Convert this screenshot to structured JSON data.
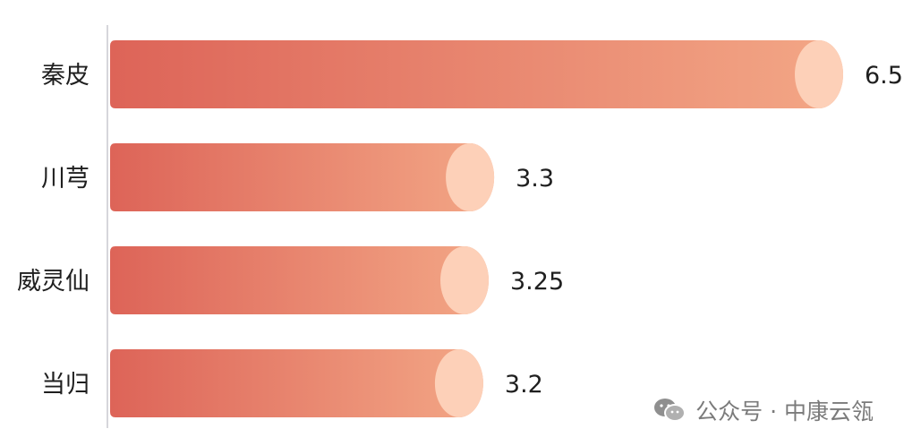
{
  "chart_data": {
    "type": "bar",
    "orientation": "horizontal",
    "categories": [
      "秦皮",
      "川芎",
      "威灵仙",
      "当归"
    ],
    "values": [
      6.5,
      3.3,
      3.25,
      3.2
    ],
    "data_labels": [
      "6.5",
      "3.3",
      "3.25",
      "3.2"
    ],
    "xlim": [
      0,
      6.5
    ],
    "grid": false,
    "legend": "none",
    "colors": {
      "bar_start": "#dd6458",
      "bar_end": "#f3a786",
      "cap": "#fdd0b8",
      "axis": "#c9c9cf"
    }
  },
  "watermark": {
    "icon": "wechat-icon",
    "text": "公众号 · 中康云瓴"
  }
}
